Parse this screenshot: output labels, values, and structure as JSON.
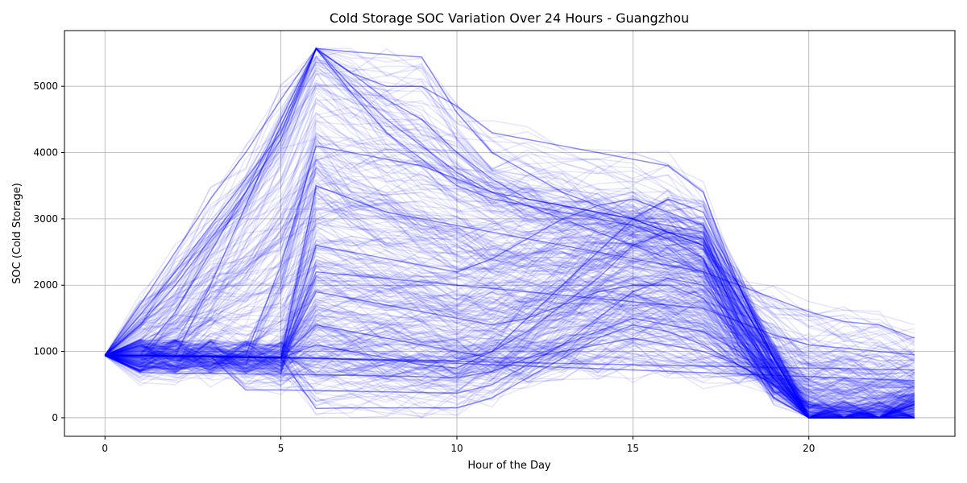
{
  "chart_data": {
    "type": "line",
    "title": "Cold Storage SOC Variation Over 24 Hours - Guangzhou",
    "xlabel": "Hour of the Day",
    "ylabel": "SOC (Cold Storage)",
    "xlim": [
      -1.15,
      24.15
    ],
    "ylim": [
      -280,
      5840
    ],
    "xticks": [
      0,
      5,
      10,
      15,
      20
    ],
    "yticks": [
      0,
      1000,
      2000,
      3000,
      4000,
      5000
    ],
    "grid": true,
    "line_color": "#0000ff",
    "line_alpha": 0.1,
    "series_count": 365,
    "hours": [
      0,
      1,
      2,
      3,
      4,
      5,
      6,
      7,
      8,
      9,
      10,
      11,
      12,
      13,
      14,
      15,
      16,
      17,
      18,
      19,
      20,
      21,
      22,
      23
    ],
    "representative_series": [
      {
        "values": [
          940,
          1550,
          2200,
          2900,
          3600,
          4300,
          5570,
          5520,
          5480,
          5440,
          4600,
          4000,
          3700,
          3400,
          3200,
          3000,
          2800,
          2600,
          1500,
          600,
          0,
          0,
          0,
          0
        ]
      },
      {
        "values": [
          940,
          1700,
          2500,
          3300,
          4000,
          4800,
          5570,
          4900,
          4300,
          3900,
          3500,
          3300,
          3200,
          3100,
          3000,
          2900,
          2700,
          2400,
          1200,
          400,
          0,
          0,
          0,
          200
        ]
      },
      {
        "values": [
          940,
          940,
          1600,
          2500,
          3400,
          4500,
          5570,
          5000,
          4500,
          4100,
          3700,
          3400,
          3200,
          3000,
          2800,
          2600,
          2400,
          2200,
          1100,
          300,
          0,
          0,
          0,
          250
        ]
      },
      {
        "values": [
          940,
          940,
          940,
          2000,
          3200,
          4400,
          5560,
          5200,
          4800,
          4500,
          4000,
          3600,
          3300,
          3200,
          3100,
          3000,
          2900,
          2800,
          1500,
          700,
          0,
          0,
          0,
          100
        ]
      },
      {
        "values": [
          940,
          930,
          920,
          920,
          920,
          920,
          900,
          880,
          860,
          840,
          820,
          800,
          780,
          760,
          740,
          720,
          700,
          680,
          660,
          640,
          620,
          600,
          580,
          560
        ]
      },
      {
        "values": [
          940,
          680,
          670,
          670,
          660,
          660,
          650,
          640,
          630,
          620,
          600,
          700,
          900,
          1100,
          1300,
          1500,
          1400,
          1300,
          1000,
          500,
          0,
          0,
          0,
          0
        ]
      },
      {
        "values": [
          940,
          940,
          930,
          930,
          920,
          910,
          1900,
          1800,
          1700,
          1600,
          1500,
          1400,
          1500,
          1700,
          1900,
          2000,
          2000,
          1800,
          1200,
          600,
          0,
          0,
          0,
          150
        ]
      },
      {
        "values": [
          940,
          940,
          930,
          920,
          910,
          900,
          900,
          890,
          880,
          870,
          860,
          1000,
          1300,
          1700,
          2100,
          2600,
          2800,
          2700,
          1800,
          900,
          0,
          0,
          0,
          200
        ]
      },
      {
        "values": [
          940,
          940,
          930,
          930,
          420,
          420,
          410,
          400,
          390,
          380,
          370,
          500,
          800,
          1100,
          1500,
          1900,
          2100,
          2000,
          1400,
          700,
          0,
          0,
          0,
          50
        ]
      },
      {
        "values": [
          940,
          940,
          940,
          940,
          940,
          2300,
          4100,
          4000,
          3900,
          3800,
          3600,
          3400,
          3300,
          3200,
          3100,
          3000,
          2800,
          2600,
          1800,
          900,
          0,
          0,
          0,
          0
        ]
      },
      {
        "values": [
          940,
          940,
          930,
          930,
          920,
          910,
          3500,
          3300,
          3100,
          3000,
          2900,
          2800,
          2700,
          2600,
          2500,
          2400,
          2300,
          2200,
          2000,
          1800,
          1600,
          1450,
          1400,
          1200
        ]
      },
      {
        "values": [
          940,
          940,
          930,
          930,
          920,
          910,
          2200,
          2150,
          2100,
          2050,
          2000,
          1950,
          1900,
          1850,
          1800,
          1750,
          1700,
          1650,
          1450,
          1250,
          1100,
          1050,
          1000,
          950
        ]
      },
      {
        "values": [
          940,
          1400,
          2000,
          2700,
          3400,
          4200,
          5570,
          5200,
          5000,
          5000,
          4700,
          4300,
          4200,
          4100,
          4000,
          3900,
          3800,
          3400,
          2000,
          900,
          0,
          0,
          0,
          0
        ]
      },
      {
        "values": [
          940,
          940,
          930,
          920,
          910,
          900,
          1400,
          1300,
          1200,
          1100,
          1000,
          900,
          900,
          1000,
          1100,
          1200,
          1100,
          1000,
          800,
          500,
          0,
          0,
          0,
          0
        ]
      },
      {
        "values": [
          940,
          940,
          930,
          920,
          910,
          900,
          2600,
          2500,
          2400,
          2300,
          2200,
          2400,
          2700,
          3000,
          3200,
          3300,
          3100,
          2900,
          2000,
          1000,
          0,
          0,
          0,
          300
        ]
      },
      {
        "values": [
          940,
          940,
          930,
          920,
          910,
          900,
          1100,
          1000,
          900,
          800,
          750,
          1000,
          1500,
          2000,
          2500,
          3000,
          3300,
          3100,
          2000,
          900,
          0,
          0,
          0,
          0
        ]
      },
      {
        "values": [
          940,
          940,
          930,
          920,
          910,
          900,
          140,
          150,
          150,
          150,
          150,
          300,
          600,
          900,
          1200,
          1400,
          1300,
          1100,
          800,
          500,
          200,
          100,
          0,
          0
        ]
      },
      {
        "values": [
          940,
          940,
          930,
          920,
          910,
          900,
          890,
          880,
          870,
          860,
          850,
          840,
          830,
          820,
          810,
          800,
          790,
          780,
          770,
          760,
          750,
          740,
          730,
          720
        ]
      }
    ]
  }
}
